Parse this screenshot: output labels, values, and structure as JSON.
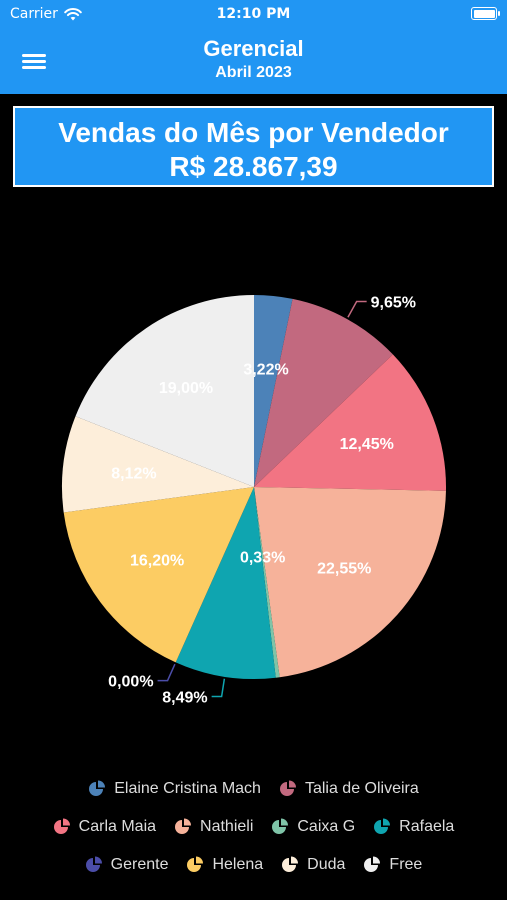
{
  "status_bar": {
    "carrier": "Carrier",
    "time": "12:10 PM"
  },
  "app_bar": {
    "title": "Gerencial",
    "subtitle": "Abril 2023"
  },
  "summary": {
    "title": "Vendas do Mês por Vendedor",
    "total": "R$ 28.867,39"
  },
  "chart_data": {
    "type": "pie",
    "slices": [
      {
        "name": "Elaine Cristina Mach",
        "value": 3.22,
        "label": "3,22%",
        "color": "#4C82B8"
      },
      {
        "name": "Talia de Oliveira",
        "value": 9.65,
        "label": "9,65%",
        "color": "#C2697F"
      },
      {
        "name": "Carla Maia",
        "value": 12.45,
        "label": "12,45%",
        "color": "#F27483"
      },
      {
        "name": "Nathieli",
        "value": 22.55,
        "label": "22,55%",
        "color": "#F6B29A"
      },
      {
        "name": "Caixa G",
        "value": 0.33,
        "label": "0,33%",
        "color": "#7FC4A8"
      },
      {
        "name": "Rafaela",
        "value": 8.49,
        "label": "8,49%",
        "color": "#0FA5B0"
      },
      {
        "name": "Gerente",
        "value": 0.0,
        "label": "0,00%",
        "color": "#4B4DA8"
      },
      {
        "name": "Helena",
        "value": 16.2,
        "label": "16,20%",
        "color": "#FCCC63"
      },
      {
        "name": "Duda",
        "value": 8.12,
        "label": "8,12%",
        "color": "#FDEEDA"
      },
      {
        "name": "Free",
        "value": 19.0,
        "label": "19,00%",
        "color": "#EFEFEF"
      }
    ]
  },
  "legend": {
    "rows": [
      [
        "Elaine Cristina Mach",
        "Talia de Oliveira"
      ],
      [
        "Carla Maia",
        "Nathieli",
        "Caixa G",
        "Rafaela"
      ],
      [
        "Gerente",
        "Helena",
        "Duda",
        "Free"
      ]
    ]
  }
}
